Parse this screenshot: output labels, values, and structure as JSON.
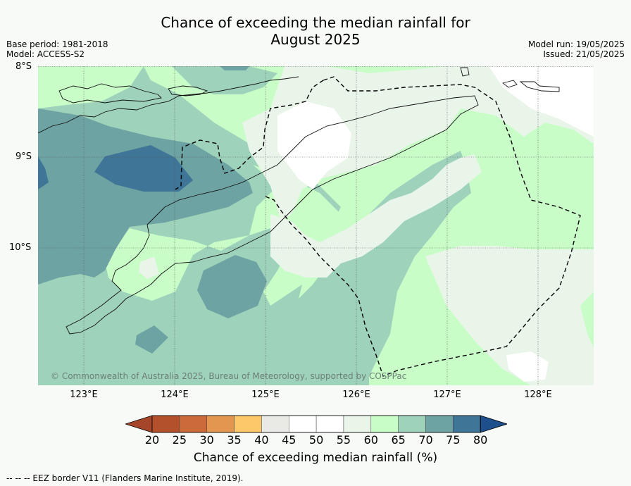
{
  "title": [
    "Chance of exceeding the median rainfall for",
    "August 2025"
  ],
  "meta_left": [
    "Base period: 1981-2018",
    "Model: ACCESS-S2"
  ],
  "meta_right": [
    "Model run: 19/05/2025",
    "Issued: 21/05/2025"
  ],
  "lat_labels": [
    "8°S",
    "9°S",
    "10°S"
  ],
  "lon_labels": [
    "123°E",
    "124°E",
    "125°E",
    "126°E",
    "127°E",
    "128°E"
  ],
  "copyright": "© Commonwealth of Australia 2025, Bureau of Meteorology, supported by COSPPac",
  "colorbar": {
    "ticks": [
      "20",
      "25",
      "30",
      "35",
      "40",
      "45",
      "50",
      "55",
      "60",
      "65",
      "70",
      "75",
      "80"
    ],
    "colors": [
      "#a5452a",
      "#b2512c",
      "#cc6a3a",
      "#e2964f",
      "#fcc86a",
      "#e9e9e6",
      "#ffffff",
      "#ffffff",
      "#eaf5ea",
      "#c8fdc8",
      "#9ed2ba",
      "#6ea3a3",
      "#3f7596",
      "#1d4f8c"
    ],
    "label": "Chance of exceeding median rainfall (%)"
  },
  "footer": "--  --  -- EEZ border V11 (Flanders Marine Institute, 2019).",
  "legend_colors": {
    "c55_60": "#eaf5ea",
    "c60_65": "#c8fdc8",
    "c65_70": "#9ed2ba",
    "c70_75": "#6ea3a3",
    "c75_80": "#3f7596",
    "c45_55": "#ffffff"
  }
}
